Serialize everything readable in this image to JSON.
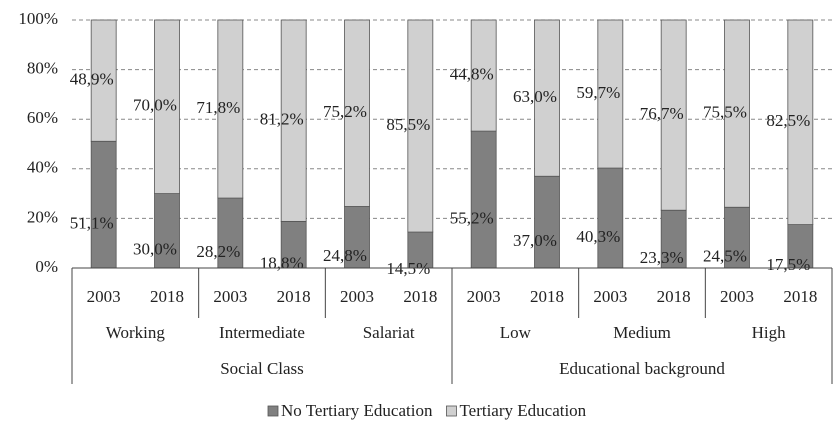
{
  "chart_data": {
    "type": "stacked_bar",
    "categories": [
      "2003",
      "2018",
      "2003",
      "2018",
      "2003",
      "2018",
      "2003",
      "2018",
      "2003",
      "2018",
      "2003",
      "2018"
    ],
    "category_groups": [
      "Working",
      "Intermediate",
      "Salariat",
      "Low",
      "Medium",
      "High"
    ],
    "super_groups": [
      "Social Class",
      "Educational background"
    ],
    "series": [
      {
        "name": "No Tertiary Education",
        "color": "#808080",
        "values": [
          51.1,
          30.0,
          28.2,
          18.8,
          24.8,
          14.5,
          55.2,
          37.0,
          40.3,
          23.3,
          24.5,
          17.5
        ],
        "value_labels": [
          "51,1%",
          "30,0%",
          "28,2%",
          "18,8%",
          "24,8%",
          "14,5%",
          "55,2%",
          "37,0%",
          "40,3%",
          "23,3%",
          "24,5%",
          "17,5%"
        ]
      },
      {
        "name": "Tertiary Education",
        "color": "#d0d0d0",
        "values": [
          48.9,
          70.0,
          71.8,
          81.2,
          75.2,
          85.5,
          44.8,
          63.0,
          59.7,
          76.7,
          75.5,
          82.5
        ],
        "value_labels": [
          "48,9%",
          "70,0%",
          "71,8%",
          "81,2%",
          "75,2%",
          "85,5%",
          "44,8%",
          "63,0%",
          "59,7%",
          "76,7%",
          "75,5%",
          "82,5%"
        ]
      }
    ],
    "ylim": [
      0,
      100
    ],
    "yticks": [
      {
        "value": 0,
        "label": "0%"
      },
      {
        "value": 20,
        "label": "20%"
      },
      {
        "value": 40,
        "label": "40%"
      },
      {
        "value": 60,
        "label": "60%"
      },
      {
        "value": 80,
        "label": "80%"
      },
      {
        "value": 100,
        "label": "100%"
      }
    ],
    "grid": true,
    "legend": "bottom"
  }
}
